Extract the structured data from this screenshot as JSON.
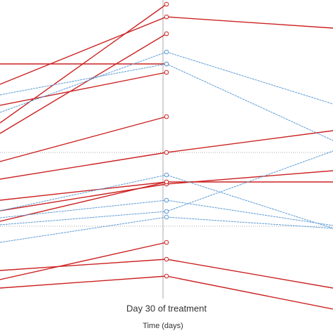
{
  "chart_data": {
    "type": "line",
    "categories": [
      null,
      "Day 30 of treatment",
      null
    ],
    "x_label": "Time (days)",
    "ylim": [
      0,
      474
    ],
    "series": [
      {
        "color": "#cc2222",
        "values": [
          299,
          468,
          null
        ]
      },
      {
        "color": "#cc2222",
        "values": [
          354,
          450,
          434
        ]
      },
      {
        "color": "#cc2222",
        "values": [
          284,
          426,
          null
        ]
      },
      {
        "color": "#cc2222",
        "values": [
          383,
          383,
          null
        ]
      },
      {
        "color": "#cc2222",
        "values": [
          324,
          371,
          null
        ]
      },
      {
        "color": "#cc2222",
        "values": [
          244,
          308,
          null
        ]
      },
      {
        "color": "#cc2222",
        "values": [
          219,
          257,
          288
        ]
      },
      {
        "color": "#cc2222",
        "values": [
          189,
          215,
          215
        ]
      },
      {
        "color": "#cc2222",
        "values": [
          174,
          212,
          231
        ]
      },
      {
        "color": "#cc2222",
        "values": [
          159,
          215,
          null
        ]
      },
      {
        "color": "#cc2222",
        "values": [
          76,
          129,
          null
        ]
      },
      {
        "color": "#cc2222",
        "values": [
          89,
          105,
          64
        ]
      },
      {
        "color": "#cc2222",
        "values": [
          64,
          81,
          34
        ]
      },
      {
        "color": "#5b9bd5",
        "values": [
          314,
          400,
          326
        ]
      },
      {
        "color": "#5b9bd5",
        "values": [
          339,
          383,
          274
        ]
      },
      {
        "color": "#5b9bd5",
        "values": [
          174,
          225,
          149
        ]
      },
      {
        "color": "#5b9bd5",
        "values": [
          164,
          189,
          153
        ]
      },
      {
        "color": "#5b9bd5",
        "values": [
          154,
          173,
          259
        ]
      },
      {
        "color": "#5b9bd5",
        "values": [
          129,
          165,
          149
        ]
      }
    ]
  }
}
